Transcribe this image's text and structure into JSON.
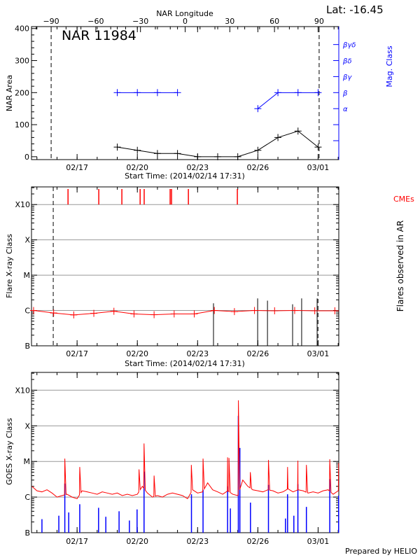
{
  "footer": "Prepared by HELIO",
  "chart_data": [
    {
      "type": "line",
      "title": "NAR 11984",
      "lat_label": "Lat: -16.45",
      "top_axis": {
        "label": "NAR Longitude",
        "ticks": [
          -90,
          -60,
          -30,
          0,
          30,
          60,
          90
        ],
        "range": [
          -103.2,
          103.2
        ]
      },
      "xlabel": "Start Time: (2014/02/14 17:31)",
      "xlim": [
        "2014-02-14 17:31",
        "2014-03-02 00:43"
      ],
      "x_ticks": [
        {
          "date": "2014-02-17 00:00",
          "label": "02/17"
        },
        {
          "date": "2014-02-20 00:00",
          "label": "02/20"
        },
        {
          "date": "2014-02-23 00:00",
          "label": "02/23"
        },
        {
          "date": "2014-02-26 00:00",
          "label": "02/26"
        },
        {
          "date": "2014-03-01 00:00",
          "label": "03/01"
        }
      ],
      "ylabel": "NAR Area",
      "ylim": [
        -9,
        406
      ],
      "y_ticks": [
        0,
        100,
        200,
        300,
        400
      ],
      "right_axis": {
        "label": "Mag. Class",
        "color": "#0000ff",
        "ticks": [
          {
            "value": 50,
            "label": ""
          },
          {
            "value": 100,
            "label": ""
          },
          {
            "value": 150,
            "label": "α"
          },
          {
            "value": 200,
            "label": "β"
          },
          {
            "value": 250,
            "label": "βγ"
          },
          {
            "value": 300,
            "label": "βδ"
          },
          {
            "value": 350,
            "label": "βγδ"
          }
        ]
      },
      "limb_longitudes": [
        -90,
        90
      ],
      "area_series": {
        "color": "#000000",
        "x": [
          "2014-02-19 00:00",
          "2014-02-20 00:00",
          "2014-02-21 00:00",
          "2014-02-22 00:00",
          "2014-02-23 00:00",
          "2014-02-24 00:00",
          "2014-02-25 00:00",
          "2014-02-26 00:00",
          "2014-02-27 00:00",
          "2014-02-28 00:00",
          "2014-03-01 00:00"
        ],
        "values": [
          30,
          20,
          10,
          10,
          0,
          0,
          0,
          20,
          60,
          80,
          30
        ]
      },
      "mag_series": {
        "color": "#0000ff",
        "x": [
          "2014-02-19 00:00",
          "2014-02-20 00:00",
          "2014-02-21 00:00",
          "2014-02-22 00:00",
          "2014-02-26 00:00",
          "2014-02-27 00:00",
          "2014-02-28 00:00",
          "2014-03-01 00:00"
        ],
        "classes": [
          "β",
          "β",
          "β",
          "β",
          "α",
          "β",
          "β",
          "β"
        ],
        "segments": [
          [
            0,
            1,
            2,
            3
          ],
          [
            4,
            5,
            6,
            7
          ]
        ]
      }
    },
    {
      "type": "line",
      "xlabel": "Start Time: (2014/02/14 17:31)",
      "ylabel": "Flare X-ray Class",
      "right_label": "Flares observed in AR",
      "cme_label": "CMEs",
      "y_scale": "log",
      "ylim": [
        1e-07,
        0.00316
      ],
      "class_ticks": [
        {
          "value": 1e-07,
          "label": "B"
        },
        {
          "value": 1e-06,
          "label": "C"
        },
        {
          "value": 1e-05,
          "label": "M"
        },
        {
          "value": 0.0001,
          "label": "X"
        },
        {
          "value": 0.001,
          "label": "X10"
        }
      ],
      "grid_levels": [
        1e-06,
        1e-05,
        0.0001,
        0.001
      ],
      "limb_dates": [
        "2014-02-15 19:30",
        "2014-02-28 23:50"
      ],
      "class_series": {
        "color": "#ff0000",
        "x": [
          "2014-02-14 20:00",
          "2014-02-15 20:00",
          "2014-02-16 20:00",
          "2014-02-17 20:00",
          "2014-02-18 20:00",
          "2014-02-19 20:00",
          "2014-02-20 20:00",
          "2014-02-21 20:00",
          "2014-02-22 20:00",
          "2014-02-23 20:00",
          "2014-02-24 20:00",
          "2014-02-25 20:00",
          "2014-02-26 20:00",
          "2014-02-27 20:00",
          "2014-02-28 20:00",
          "2014-03-01 20:00"
        ],
        "values": [
          1e-06,
          8.5e-07,
          7.5e-07,
          8.3e-07,
          9.5e-07,
          8e-07,
          7.6e-07,
          8e-07,
          8e-07,
          1e-06,
          9.3e-07,
          1e-06,
          9.8e-07,
          1e-06,
          9.8e-07,
          9.8e-07
        ]
      },
      "cmes": {
        "color": "#ff0000",
        "dates": [
          "2014-02-16 13:10",
          "2014-02-18 01:55",
          "2014-02-19 05:30",
          "2014-02-20 03:20",
          "2014-02-20 08:10",
          "2014-02-21 15:10",
          "2014-02-21 16:50",
          "2014-02-22 13:00",
          "2014-02-24 23:30"
        ]
      },
      "flares": {
        "color": "#000000",
        "dates": [
          "2014-02-23 19:00",
          "2014-02-25 23:45",
          "2014-02-26 11:30",
          "2014-02-27 17:30",
          "2014-02-28 04:20",
          "2014-02-28 22:50"
        ],
        "values": [
          1.6e-06,
          2.2e-06,
          1.9e-06,
          1.5e-06,
          2.2e-06,
          2.2e-06
        ]
      }
    },
    {
      "type": "line",
      "ylabel": "GOES X-ray Class",
      "y_scale": "log",
      "ylim": [
        1e-07,
        0.00316
      ],
      "class_ticks": [
        {
          "value": 1e-07,
          "label": "B"
        },
        {
          "value": 1e-06,
          "label": "C"
        },
        {
          "value": 1e-05,
          "label": "M"
        },
        {
          "value": 0.0001,
          "label": "X"
        },
        {
          "value": 0.001,
          "label": "X10"
        }
      ],
      "grid_levels": [
        1e-06,
        1e-05,
        0.0001,
        0.001
      ],
      "long_channel": {
        "color": "#ff0000",
        "start": "2014-02-14 18:00",
        "step_hours": 6,
        "values": [
          2e-06,
          1.5e-06,
          1.4e-06,
          1.6e-06,
          1.3e-06,
          1e-06,
          1.1e-06,
          1.2e-06,
          1e-06,
          9e-07,
          1.5e-06,
          1.4e-06,
          1.3e-06,
          1.2e-06,
          1.4e-06,
          1.3e-06,
          1.2e-06,
          1.3e-06,
          1.1e-06,
          1.2e-06,
          1.1e-06,
          1.2e-06,
          2e-06,
          1.3e-06,
          1e-06,
          1.1e-06,
          1e-06,
          1.2e-06,
          1.3e-06,
          1.2e-06,
          1.1e-06,
          9e-07,
          1.6e-06,
          1.3e-06,
          1.4e-06,
          2.5e-06,
          1.6e-06,
          1.4e-06,
          1.2e-06,
          1.5e-06,
          1.2e-06,
          1.1e-06,
          3e-06,
          2e-06,
          1.6e-06,
          1.5e-06,
          1.4e-06,
          1.6e-06,
          1.5e-06,
          1.3e-06,
          1.4e-06,
          1.7e-06,
          1.4e-06,
          1.6e-06,
          1.5e-06,
          1.3e-06,
          1.4e-06,
          1.3e-06,
          1.5e-06,
          1.6e-06,
          1.2e-06,
          1.5e-06
        ],
        "peaks": [
          [
            "2014-02-16 09:20",
            1.2e-05
          ],
          [
            "2014-02-17 03:10",
            7e-06
          ],
          [
            "2014-02-20 02:00",
            6e-06
          ],
          [
            "2014-02-20 08:00",
            3.2e-05
          ],
          [
            "2014-02-20 20:00",
            4e-06
          ],
          [
            "2014-02-22 16:30",
            8e-06
          ],
          [
            "2014-02-23 06:30",
            1.2e-05
          ],
          [
            "2014-02-24 11:50",
            1.3e-05
          ],
          [
            "2014-02-24 13:30",
            1.25e-05
          ],
          [
            "2014-02-25 00:45",
            0.00052
          ],
          [
            "2014-02-25 15:00",
            5e-06
          ],
          [
            "2014-02-26 12:40",
            1.1e-05
          ],
          [
            "2014-02-27 11:30",
            7e-06
          ],
          [
            "2014-02-27 23:50",
            1.05e-05
          ],
          [
            "2014-02-28 10:00",
            8e-06
          ],
          [
            "2014-03-01 13:55",
            1.15e-05
          ],
          [
            "2014-03-02 00:30",
            9e-06
          ]
        ]
      },
      "short_channel": {
        "color": "#0000ff",
        "spikes": [
          [
            "2014-02-15 06:00",
            2.4e-07
          ],
          [
            "2014-02-16 02:10",
            3e-07
          ],
          [
            "2014-02-16 09:20",
            2.4e-06
          ],
          [
            "2014-02-16 14:00",
            3.7e-07
          ],
          [
            "2014-02-17 03:10",
            6.3e-07
          ],
          [
            "2014-02-18 01:40",
            5e-07
          ],
          [
            "2014-02-18 10:20",
            2.8e-07
          ],
          [
            "2014-02-19 02:10",
            4e-07
          ],
          [
            "2014-02-19 14:30",
            2.2e-07
          ],
          [
            "2014-02-19 23:40",
            4.5e-07
          ],
          [
            "2014-02-20 08:00",
            5.2e-06
          ],
          [
            "2014-02-22 16:40",
            1.2e-06
          ],
          [
            "2014-02-23 06:30",
            1.6e-06
          ],
          [
            "2014-02-24 11:50",
            2e-06
          ],
          [
            "2014-02-24 15:10",
            4.8e-07
          ],
          [
            "2014-02-25 00:40",
            0.00019
          ],
          [
            "2014-02-25 02:30",
            2.4e-05
          ],
          [
            "2014-02-25 15:10",
            7e-07
          ],
          [
            "2014-02-26 12:40",
            2.2e-06
          ],
          [
            "2014-02-27 09:00",
            2.5e-07
          ],
          [
            "2014-02-27 11:30",
            1.2e-06
          ],
          [
            "2014-02-27 19:00",
            3e-07
          ],
          [
            "2014-02-27 23:50",
            2.3e-06
          ],
          [
            "2014-02-28 10:00",
            5.3e-07
          ],
          [
            "2014-03-01 13:55",
            3.2e-06
          ],
          [
            "2014-03-02 00:30",
            1.1e-06
          ]
        ]
      }
    }
  ]
}
